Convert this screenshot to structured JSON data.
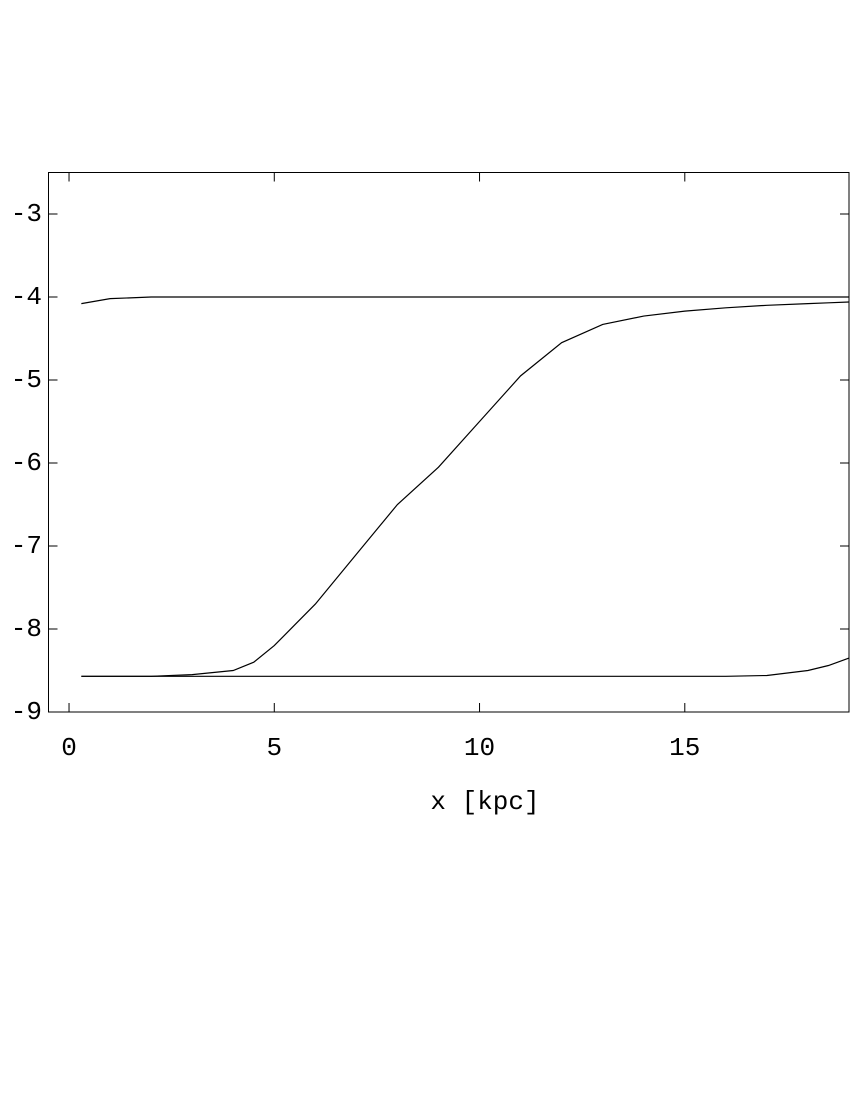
{
  "chart_data": {
    "type": "line",
    "x_label": "x [kpc]",
    "x": [
      0.3,
      1,
      2,
      3,
      4,
      4.5,
      5,
      5.5,
      6,
      7,
      8,
      9,
      10,
      11,
      12,
      13,
      14,
      15,
      16,
      17,
      18,
      18.5,
      19
    ],
    "series": [
      {
        "color": "#000000",
        "values": [
          -4.08,
          -4.02,
          -4.0,
          -4.0,
          -4.0,
          -4.0,
          -4.0,
          -4.0,
          -4.0,
          -4.0,
          -4.0,
          -4.0,
          -4.0,
          -4.0,
          -4.0,
          -4.0,
          -4.0,
          -4.0,
          -4.0,
          -4.0,
          -4.0,
          -4.0,
          -4.0
        ]
      },
      {
        "color": "#000000",
        "values": [
          -8.57,
          -8.57,
          -8.57,
          -8.55,
          -8.5,
          -8.4,
          -8.2,
          -7.95,
          -7.7,
          -7.1,
          -6.5,
          -6.05,
          -5.5,
          -4.95,
          -4.55,
          -4.33,
          -4.23,
          -4.17,
          -4.13,
          -4.1,
          -4.08,
          -4.07,
          -4.06
        ]
      },
      {
        "color": "#000000",
        "values": [
          -8.57,
          -8.57,
          -8.57,
          -8.57,
          -8.57,
          -8.57,
          -8.57,
          -8.57,
          -8.57,
          -8.57,
          -8.57,
          -8.57,
          -8.57,
          -8.57,
          -8.57,
          -8.57,
          -8.57,
          -8.57,
          -8.57,
          -8.56,
          -8.5,
          -8.44,
          -8.35
        ]
      }
    ],
    "xlim": [
      -0.5,
      19
    ],
    "xticks": [
      0,
      5,
      10,
      15
    ],
    "ylim": [
      -9,
      -2.5
    ],
    "yticks": [
      -9,
      -8,
      -7,
      -6,
      -5,
      -4,
      -3
    ],
    "grid": false
  }
}
